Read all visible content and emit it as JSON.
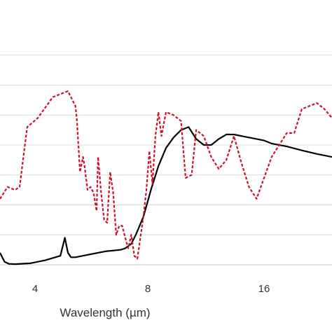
{
  "chart_data": {
    "type": "line",
    "xlabel": "Wavelength (µm)",
    "ylabel": "",
    "title": "",
    "x_ticks": [
      "4",
      "8",
      "16"
    ],
    "xlim": [
      2,
      24
    ],
    "ylim": [
      0,
      8
    ],
    "grid": true,
    "gridlines_y": [
      1,
      2,
      3,
      4,
      5,
      6,
      7
    ],
    "legend": "none",
    "colors": {
      "series_black": "#000000",
      "series_red": "#d0102a",
      "grid": "#d9d9d9"
    },
    "series": [
      {
        "style": "solid",
        "x": [
          2,
          2.3,
          2.6,
          3,
          4,
          5,
          6,
          6.3,
          6.5,
          6.7,
          7,
          8,
          9,
          10,
          10.3,
          10.7,
          11,
          11.5,
          12,
          12.5,
          13,
          13.5,
          14,
          14.5,
          15,
          15.5,
          16,
          16.5,
          17,
          17.5,
          18,
          18.5,
          19,
          19.5,
          20,
          21,
          22,
          23,
          24
        ],
        "y": [
          0.4,
          0.1,
          0.03,
          0.02,
          0.05,
          0.15,
          0.3,
          0.9,
          0.4,
          0.25,
          0.25,
          0.35,
          0.45,
          0.5,
          0.55,
          0.7,
          1.0,
          1.6,
          2.5,
          3.3,
          3.9,
          4.25,
          4.5,
          4.6,
          4.2,
          4.0,
          4.0,
          4.2,
          4.35,
          4.35,
          4.3,
          4.25,
          4.2,
          4.15,
          4.05,
          3.95,
          3.82,
          3.7,
          3.6
        ]
      },
      {
        "style": "dashed",
        "x": [
          2,
          2.5,
          3,
          3.3,
          3.8,
          4.5,
          5.5,
          6.5,
          7,
          7.1,
          7.3,
          7.5,
          7.6,
          7.8,
          8,
          8.2,
          8.4,
          8.5,
          8.7,
          8.9,
          9.1,
          9.3,
          9.5,
          9.7,
          9.9,
          10.1,
          10.3,
          10.5,
          10.7,
          10.9,
          11.1,
          11.3,
          11.5,
          11.7,
          11.9,
          12.1,
          12.3,
          12.5,
          12.7,
          13,
          13.5,
          14,
          14.3,
          14.7,
          15,
          15.5,
          16,
          16.5,
          17,
          17.5,
          18,
          18.5,
          19,
          20,
          21,
          21.5,
          22,
          22.5,
          23,
          23.5,
          24
        ],
        "y": [
          2.2,
          2.6,
          2.5,
          2.6,
          4.6,
          4.9,
          5.6,
          5.8,
          5.3,
          4.8,
          3.1,
          3.6,
          3.3,
          2.5,
          2.6,
          2.4,
          1.8,
          3.6,
          2.4,
          1.5,
          1.4,
          3.1,
          2.4,
          1.0,
          1.3,
          1.3,
          0.9,
          0.55,
          1.0,
          0.3,
          0.2,
          0.9,
          1.6,
          2.5,
          3.8,
          2.7,
          4.3,
          5.1,
          4.3,
          5.1,
          5.0,
          4.8,
          2.9,
          3.0,
          4.5,
          4.3,
          3.6,
          3.2,
          3.5,
          4.3,
          3.4,
          2.6,
          2.2,
          3.6,
          4.4,
          4.4,
          5.2,
          5.3,
          5.4,
          5.2,
          4.9
        ]
      }
    ]
  }
}
